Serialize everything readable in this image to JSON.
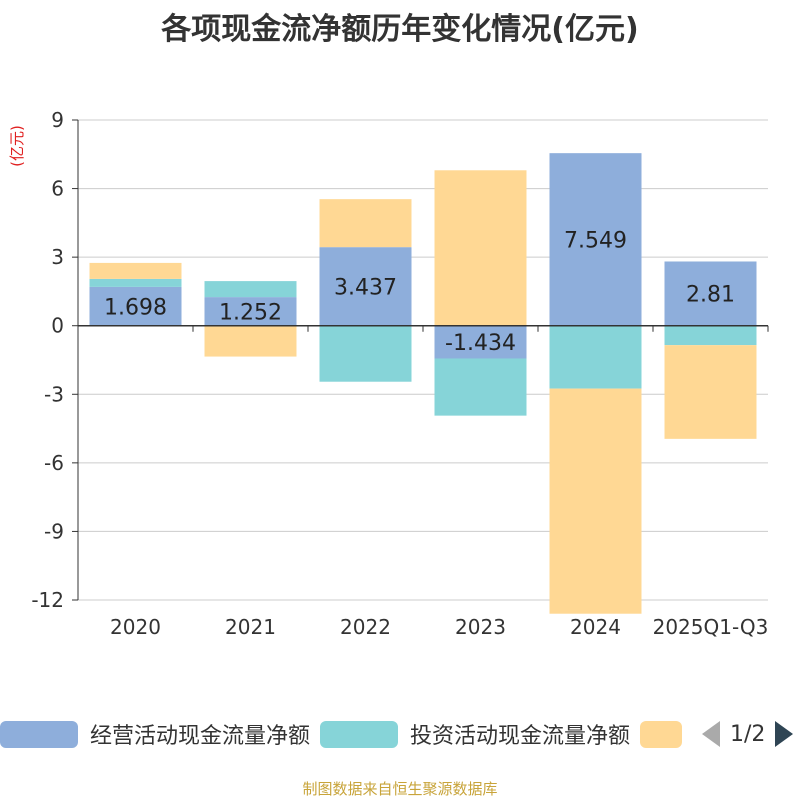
{
  "title": "各项现金流净额历年变化情况(亿元)",
  "source_text": "制图数据来自恒生聚源数据库",
  "legend": {
    "items": [
      {
        "label": "经营活动现金流量净额",
        "color": "#8eaedb"
      },
      {
        "label": "投资活动现金流量净额",
        "color": "#86d4d8"
      },
      {
        "label": "",
        "color": "#ffd894"
      }
    ],
    "page_text": "1/2"
  },
  "chart_data": {
    "type": "bar",
    "stacked": true,
    "title": "各项现金流净额历年变化情况(亿元)",
    "ylabel": "(亿元)",
    "ylim": [
      -12,
      9
    ],
    "yticks": [
      9,
      6,
      3,
      0,
      -3,
      -6,
      -9,
      -12
    ],
    "categories": [
      "2020",
      "2021",
      "2022",
      "2023",
      "2024",
      "2025Q1-Q3"
    ],
    "series": [
      {
        "name": "经营活动现金流量净额",
        "color": "#8eaedb",
        "values": [
          1.698,
          1.252,
          3.437,
          -1.434,
          7.549,
          2.81
        ],
        "labels": [
          "1.698",
          "1.252",
          "3.437",
          "-1.434",
          "7.549",
          "2.81"
        ]
      },
      {
        "name": "投资活动现金流量净额",
        "color": "#86d4d8",
        "values": [
          0.35,
          0.7,
          -2.45,
          -2.5,
          -2.75,
          -0.85
        ]
      },
      {
        "name": "",
        "color": "#ffd894",
        "values": [
          0.7,
          -1.35,
          2.1,
          6.8,
          -9.85,
          -4.1
        ]
      }
    ]
  }
}
